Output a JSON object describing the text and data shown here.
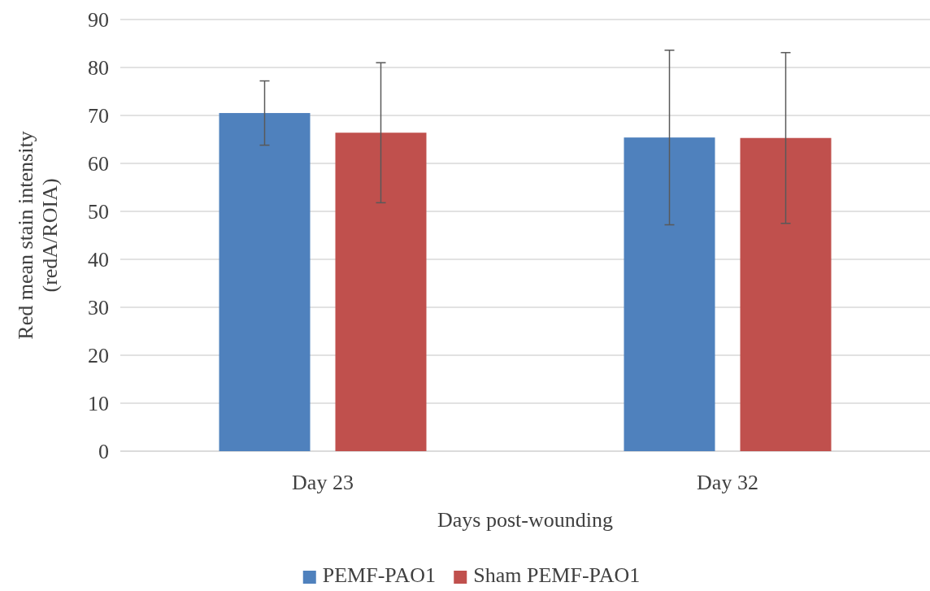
{
  "chart_data": {
    "type": "bar",
    "xlabel": "Days post-wounding",
    "ylabel": "Red mean stain intensity\n(redA/ROIA)",
    "categories": [
      "Day 23",
      "Day 32"
    ],
    "series": [
      {
        "name": "PEMF-PAO1",
        "color": "#4f81bd",
        "values": [
          70.5,
          65.4
        ],
        "errors": [
          6.7,
          18.2
        ]
      },
      {
        "name": "Sham PEMF-PAO1",
        "color": "#c0504d",
        "values": [
          66.4,
          65.3
        ],
        "errors": [
          14.6,
          17.8
        ]
      }
    ],
    "ylim": [
      0,
      90
    ],
    "yticks": [
      0,
      10,
      20,
      30,
      40,
      50,
      60,
      70,
      80,
      90
    ],
    "grid": "y",
    "legend": "bottom"
  }
}
